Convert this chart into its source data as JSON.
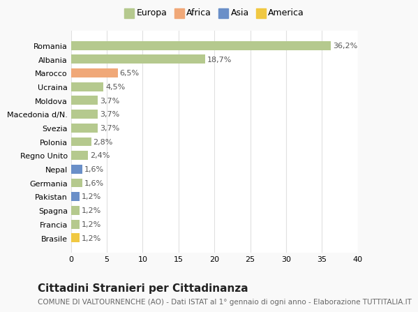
{
  "categories": [
    "Brasile",
    "Francia",
    "Spagna",
    "Pakistan",
    "Germania",
    "Nepal",
    "Regno Unito",
    "Polonia",
    "Svezia",
    "Macedonia d/N.",
    "Moldova",
    "Ucraina",
    "Marocco",
    "Albania",
    "Romania"
  ],
  "values": [
    1.2,
    1.2,
    1.2,
    1.2,
    1.6,
    1.6,
    2.4,
    2.8,
    3.7,
    3.7,
    3.7,
    4.5,
    6.5,
    18.7,
    36.2
  ],
  "labels": [
    "1,2%",
    "1,2%",
    "1,2%",
    "1,2%",
    "1,6%",
    "1,6%",
    "2,4%",
    "2,8%",
    "3,7%",
    "3,7%",
    "3,7%",
    "4,5%",
    "6,5%",
    "18,7%",
    "36,2%"
  ],
  "continents": [
    "America",
    "Europa",
    "Europa",
    "Asia",
    "Europa",
    "Asia",
    "Europa",
    "Europa",
    "Europa",
    "Europa",
    "Europa",
    "Europa",
    "Africa",
    "Europa",
    "Europa"
  ],
  "colors": {
    "Europa": "#b5c98e",
    "Africa": "#f0a878",
    "Asia": "#6a8fc8",
    "America": "#f0c842"
  },
  "legend_items": [
    "Europa",
    "Africa",
    "Asia",
    "America"
  ],
  "legend_colors": [
    "#b5c98e",
    "#f0a878",
    "#6a8fc8",
    "#f0c842"
  ],
  "xlim": [
    0,
    40
  ],
  "xticks": [
    0,
    5,
    10,
    15,
    20,
    25,
    30,
    35,
    40
  ],
  "title": "Cittadini Stranieri per Cittadinanza",
  "subtitle": "COMUNE DI VALTOURNENCHE (AO) - Dati ISTAT al 1° gennaio di ogni anno - Elaborazione TUTTITALIA.IT",
  "bg_color": "#f9f9f9",
  "plot_bg_color": "#ffffff",
  "grid_color": "#e0e0e0",
  "bar_label_fontsize": 8,
  "tick_fontsize": 8,
  "ytick_fontsize": 8,
  "legend_fontsize": 9,
  "title_fontsize": 11,
  "subtitle_fontsize": 7.5
}
